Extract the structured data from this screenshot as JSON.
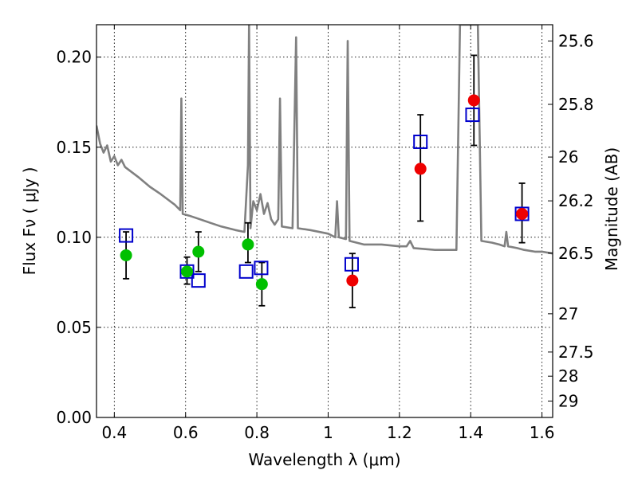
{
  "chart_data": {
    "type": "scatter",
    "xlabel": "Wavelength  λ (μm)",
    "ylabel": "Flux  Fν  ( μJy )",
    "ylabel_right": "Magnitude (AB)",
    "xlim": [
      0.35,
      1.63
    ],
    "ylim": [
      0.0,
      0.218
    ],
    "grid": true,
    "x_ticks": [
      0.4,
      0.6,
      0.8,
      1.0,
      1.2,
      1.4,
      1.6
    ],
    "x_tick_labels": [
      "0.4",
      "0.6",
      "0.8",
      "1",
      "1.2",
      "1.4",
      "1.6"
    ],
    "y_ticks": [
      0.0,
      0.05,
      0.1,
      0.15,
      0.2
    ],
    "y_tick_labels": [
      "0.00",
      "0.05",
      "0.10",
      "0.15",
      "0.20"
    ],
    "right_ticks": [
      {
        "mag": 25.6,
        "label": "25.6"
      },
      {
        "mag": 25.8,
        "label": "25.8"
      },
      {
        "mag": 26.0,
        "label": "26"
      },
      {
        "mag": 26.2,
        "label": "26.2"
      },
      {
        "mag": 26.5,
        "label": "26.5"
      },
      {
        "mag": 27.0,
        "label": "27"
      },
      {
        "mag": 27.5,
        "label": "27.5"
      },
      {
        "mag": 28.0,
        "label": "28"
      },
      {
        "mag": 29.0,
        "label": "29"
      }
    ],
    "colors": {
      "model": "#808080",
      "green": "#00c000",
      "red": "#ee0000",
      "square": "#0000cc",
      "errorbar": "#000000"
    },
    "model_spectrum": [
      [
        0.35,
        0.162
      ],
      [
        0.36,
        0.152
      ],
      [
        0.37,
        0.147
      ],
      [
        0.38,
        0.151
      ],
      [
        0.39,
        0.142
      ],
      [
        0.4,
        0.145
      ],
      [
        0.41,
        0.14
      ],
      [
        0.42,
        0.143
      ],
      [
        0.43,
        0.139
      ],
      [
        0.45,
        0.136
      ],
      [
        0.47,
        0.133
      ],
      [
        0.5,
        0.128
      ],
      [
        0.53,
        0.124
      ],
      [
        0.55,
        0.121
      ],
      [
        0.57,
        0.118
      ],
      [
        0.585,
        0.115
      ],
      [
        0.588,
        0.177
      ],
      [
        0.592,
        0.113
      ],
      [
        0.61,
        0.112
      ],
      [
        0.64,
        0.11
      ],
      [
        0.67,
        0.108
      ],
      [
        0.7,
        0.106
      ],
      [
        0.74,
        0.104
      ],
      [
        0.765,
        0.103
      ],
      [
        0.775,
        0.14
      ],
      [
        0.778,
        0.218
      ],
      [
        0.782,
        0.105
      ],
      [
        0.79,
        0.12
      ],
      [
        0.8,
        0.115
      ],
      [
        0.81,
        0.124
      ],
      [
        0.82,
        0.113
      ],
      [
        0.83,
        0.119
      ],
      [
        0.84,
        0.11
      ],
      [
        0.85,
        0.107
      ],
      [
        0.86,
        0.11
      ],
      [
        0.865,
        0.177
      ],
      [
        0.87,
        0.106
      ],
      [
        0.9,
        0.105
      ],
      [
        0.91,
        0.211
      ],
      [
        0.915,
        0.105
      ],
      [
        0.95,
        0.104
      ],
      [
        1.0,
        0.102
      ],
      [
        1.02,
        0.1
      ],
      [
        1.025,
        0.12
      ],
      [
        1.03,
        0.1
      ],
      [
        1.05,
        0.099
      ],
      [
        1.055,
        0.209
      ],
      [
        1.06,
        0.098
      ],
      [
        1.1,
        0.096
      ],
      [
        1.15,
        0.096
      ],
      [
        1.2,
        0.095
      ],
      [
        1.22,
        0.095
      ],
      [
        1.23,
        0.098
      ],
      [
        1.24,
        0.094
      ],
      [
        1.3,
        0.093
      ],
      [
        1.34,
        0.093
      ],
      [
        1.36,
        0.093
      ],
      [
        1.37,
        0.218
      ],
      [
        1.39,
        0.218
      ],
      [
        1.4,
        0.218
      ],
      [
        1.41,
        0.218
      ],
      [
        1.42,
        0.218
      ],
      [
        1.43,
        0.098
      ],
      [
        1.46,
        0.097
      ],
      [
        1.48,
        0.096
      ],
      [
        1.495,
        0.095
      ],
      [
        1.5,
        0.103
      ],
      [
        1.505,
        0.095
      ],
      [
        1.53,
        0.094
      ],
      [
        1.55,
        0.093
      ],
      [
        1.58,
        0.092
      ],
      [
        1.6,
        0.092
      ],
      [
        1.63,
        0.091
      ]
    ],
    "green_points": [
      {
        "x": 0.433,
        "y": 0.09
      },
      {
        "x": 0.604,
        "y": 0.081
      },
      {
        "x": 0.636,
        "y": 0.092
      },
      {
        "x": 0.775,
        "y": 0.096
      },
      {
        "x": 0.814,
        "y": 0.074
      }
    ],
    "red_points": [
      {
        "x": 1.068,
        "y": 0.076
      },
      {
        "x": 1.259,
        "y": 0.138
      },
      {
        "x": 1.409,
        "y": 0.176
      },
      {
        "x": 1.544,
        "y": 0.113
      }
    ],
    "squares": [
      {
        "x": 0.433,
        "y": 0.101
      },
      {
        "x": 0.604,
        "y": 0.081
      },
      {
        "x": 0.636,
        "y": 0.076
      },
      {
        "x": 0.77,
        "y": 0.081
      },
      {
        "x": 0.812,
        "y": 0.083
      },
      {
        "x": 1.066,
        "y": 0.085
      },
      {
        "x": 1.259,
        "y": 0.153
      },
      {
        "x": 1.405,
        "y": 0.168
      },
      {
        "x": 1.544,
        "y": 0.113
      }
    ],
    "error_bars": [
      {
        "x": 0.433,
        "low": 0.077,
        "high": 0.103
      },
      {
        "x": 0.604,
        "low": 0.074,
        "high": 0.089
      },
      {
        "x": 0.636,
        "low": 0.081,
        "high": 0.103
      },
      {
        "x": 0.775,
        "low": 0.086,
        "high": 0.108
      },
      {
        "x": 0.814,
        "low": 0.062,
        "high": 0.086
      },
      {
        "x": 1.068,
        "low": 0.061,
        "high": 0.091
      },
      {
        "x": 1.259,
        "low": 0.109,
        "high": 0.168
      },
      {
        "x": 1.409,
        "low": 0.151,
        "high": 0.201
      },
      {
        "x": 1.544,
        "low": 0.097,
        "high": 0.13
      }
    ]
  }
}
